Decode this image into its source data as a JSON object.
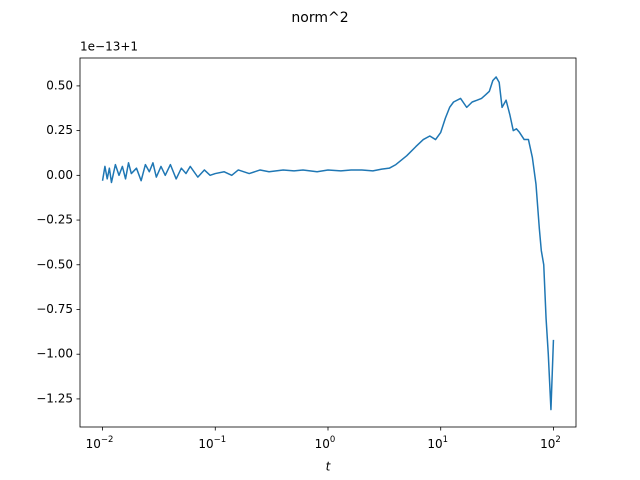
{
  "chart_data": {
    "type": "line",
    "title": "norm^2",
    "xlabel": "t",
    "offset_label": "1e−13+1",
    "x_scale": "log",
    "x": [
      0.01,
      0.0105,
      0.011,
      0.0115,
      0.012,
      0.013,
      0.014,
      0.015,
      0.016,
      0.017,
      0.018,
      0.02,
      0.022,
      0.024,
      0.026,
      0.028,
      0.03,
      0.033,
      0.036,
      0.04,
      0.045,
      0.05,
      0.055,
      0.06,
      0.07,
      0.08,
      0.09,
      0.1,
      0.12,
      0.14,
      0.16,
      0.2,
      0.25,
      0.3,
      0.4,
      0.5,
      0.6,
      0.8,
      1,
      1.3,
      1.6,
      2,
      2.5,
      3,
      3.5,
      4,
      5,
      6,
      7,
      8,
      9,
      10,
      11,
      12,
      13,
      15,
      17,
      19,
      21,
      23,
      25,
      27,
      29,
      31,
      33,
      35,
      38,
      41,
      44,
      47,
      50,
      55,
      60,
      65,
      70,
      75,
      78,
      82,
      86,
      90,
      95,
      100
    ],
    "series": [
      {
        "color": "#1f77b4",
        "values": [
          -0.03,
          0.05,
          -0.02,
          0.04,
          -0.04,
          0.06,
          0.0,
          0.05,
          -0.02,
          0.07,
          0.01,
          0.04,
          -0.03,
          0.06,
          0.02,
          0.07,
          -0.01,
          0.05,
          0.0,
          0.06,
          -0.02,
          0.04,
          0.01,
          0.05,
          -0.01,
          0.03,
          0.0,
          0.01,
          0.02,
          0.0,
          0.03,
          0.01,
          0.03,
          0.02,
          0.03,
          0.025,
          0.03,
          0.02,
          0.03,
          0.025,
          0.03,
          0.03,
          0.025,
          0.035,
          0.04,
          0.06,
          0.11,
          0.16,
          0.2,
          0.22,
          0.2,
          0.24,
          0.32,
          0.38,
          0.41,
          0.43,
          0.38,
          0.41,
          0.42,
          0.43,
          0.45,
          0.47,
          0.53,
          0.55,
          0.52,
          0.38,
          0.42,
          0.34,
          0.25,
          0.26,
          0.24,
          0.2,
          0.2,
          0.1,
          -0.05,
          -0.3,
          -0.42,
          -0.5,
          -0.8,
          -1.0,
          -1.31,
          -0.92
        ]
      }
    ],
    "xlim": [
      0.00631,
      158.5
    ],
    "ylim": [
      -1.407,
      0.656
    ],
    "xticks": [
      {
        "value": 0.01,
        "label": "10",
        "exponent": "−2"
      },
      {
        "value": 0.1,
        "label": "10",
        "exponent": "−1"
      },
      {
        "value": 1,
        "label": "10",
        "exponent": "0"
      },
      {
        "value": 10,
        "label": "10",
        "exponent": "1"
      },
      {
        "value": 100,
        "label": "10",
        "exponent": "2"
      }
    ],
    "yticks": [
      {
        "value": -1.25,
        "label": "−1.25"
      },
      {
        "value": -1,
        "label": "−1.00"
      },
      {
        "value": -0.75,
        "label": "−0.75"
      },
      {
        "value": -0.5,
        "label": "−0.50"
      },
      {
        "value": -0.25,
        "label": "−0.25"
      },
      {
        "value": 0,
        "label": "0.00"
      },
      {
        "value": 0.25,
        "label": "0.25"
      },
      {
        "value": 0.5,
        "label": "0.50"
      }
    ]
  }
}
